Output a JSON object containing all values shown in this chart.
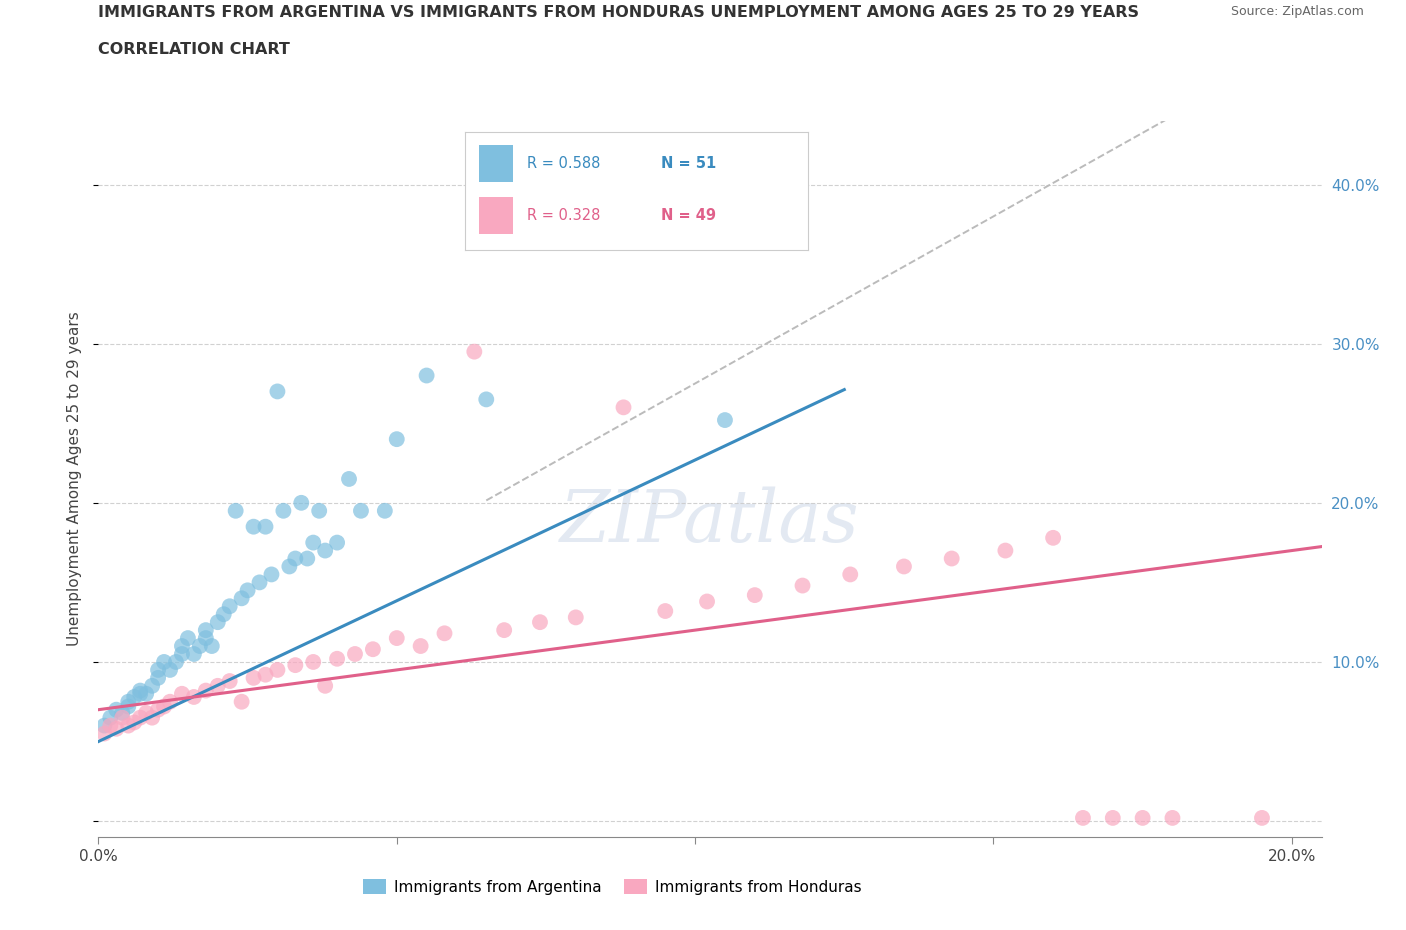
{
  "title_line1": "IMMIGRANTS FROM ARGENTINA VS IMMIGRANTS FROM HONDURAS UNEMPLOYMENT AMONG AGES 25 TO 29 YEARS",
  "title_line2": "CORRELATION CHART",
  "source": "Source: ZipAtlas.com",
  "ylabel": "Unemployment Among Ages 25 to 29 years",
  "xlim": [
    0.0,
    0.205
  ],
  "ylim": [
    -0.01,
    0.44
  ],
  "xticks": [
    0.0,
    0.05,
    0.1,
    0.15,
    0.2
  ],
  "yticks": [
    0.0,
    0.1,
    0.2,
    0.3,
    0.4
  ],
  "R_argentina": 0.588,
  "N_argentina": 51,
  "R_honduras": 0.328,
  "N_honduras": 49,
  "color_argentina": "#7fbfdf",
  "color_honduras": "#f9a8c0",
  "reg_color_argentina": "#3a8bbf",
  "reg_color_honduras": "#e0608a",
  "tick_color_right": "#4a90c4",
  "diagonal_color": "#bbbbbb",
  "watermark": "ZIPatlas",
  "background_color": "#ffffff",
  "grid_color": "#cccccc",
  "arg_x": [
    0.001,
    0.002,
    0.003,
    0.004,
    0.005,
    0.005,
    0.006,
    0.007,
    0.007,
    0.008,
    0.009,
    0.01,
    0.01,
    0.011,
    0.012,
    0.013,
    0.014,
    0.014,
    0.015,
    0.016,
    0.017,
    0.018,
    0.018,
    0.019,
    0.02,
    0.021,
    0.022,
    0.023,
    0.024,
    0.025,
    0.026,
    0.027,
    0.028,
    0.029,
    0.03,
    0.031,
    0.032,
    0.033,
    0.034,
    0.035,
    0.036,
    0.037,
    0.038,
    0.04,
    0.042,
    0.044,
    0.048,
    0.05,
    0.055,
    0.065,
    0.105
  ],
  "arg_y": [
    0.06,
    0.065,
    0.07,
    0.068,
    0.072,
    0.075,
    0.078,
    0.08,
    0.082,
    0.08,
    0.085,
    0.09,
    0.095,
    0.1,
    0.095,
    0.1,
    0.105,
    0.11,
    0.115,
    0.105,
    0.11,
    0.115,
    0.12,
    0.11,
    0.125,
    0.13,
    0.135,
    0.195,
    0.14,
    0.145,
    0.185,
    0.15,
    0.185,
    0.155,
    0.27,
    0.195,
    0.16,
    0.165,
    0.2,
    0.165,
    0.175,
    0.195,
    0.17,
    0.175,
    0.215,
    0.195,
    0.195,
    0.24,
    0.28,
    0.265,
    0.252
  ],
  "hon_x": [
    0.001,
    0.002,
    0.003,
    0.004,
    0.005,
    0.006,
    0.007,
    0.008,
    0.009,
    0.01,
    0.011,
    0.012,
    0.014,
    0.016,
    0.018,
    0.02,
    0.022,
    0.024,
    0.026,
    0.028,
    0.03,
    0.033,
    0.036,
    0.038,
    0.04,
    0.043,
    0.046,
    0.05,
    0.054,
    0.058,
    0.063,
    0.068,
    0.074,
    0.08,
    0.088,
    0.095,
    0.102,
    0.11,
    0.118,
    0.126,
    0.135,
    0.143,
    0.152,
    0.16,
    0.165,
    0.17,
    0.175,
    0.18,
    0.195
  ],
  "hon_y": [
    0.055,
    0.06,
    0.058,
    0.065,
    0.06,
    0.062,
    0.065,
    0.068,
    0.065,
    0.07,
    0.072,
    0.075,
    0.08,
    0.078,
    0.082,
    0.085,
    0.088,
    0.075,
    0.09,
    0.092,
    0.095,
    0.098,
    0.1,
    0.085,
    0.102,
    0.105,
    0.108,
    0.115,
    0.11,
    0.118,
    0.295,
    0.12,
    0.125,
    0.128,
    0.26,
    0.132,
    0.138,
    0.142,
    0.148,
    0.155,
    0.16,
    0.165,
    0.17,
    0.178,
    0.002,
    0.002,
    0.002,
    0.002,
    0.002
  ]
}
